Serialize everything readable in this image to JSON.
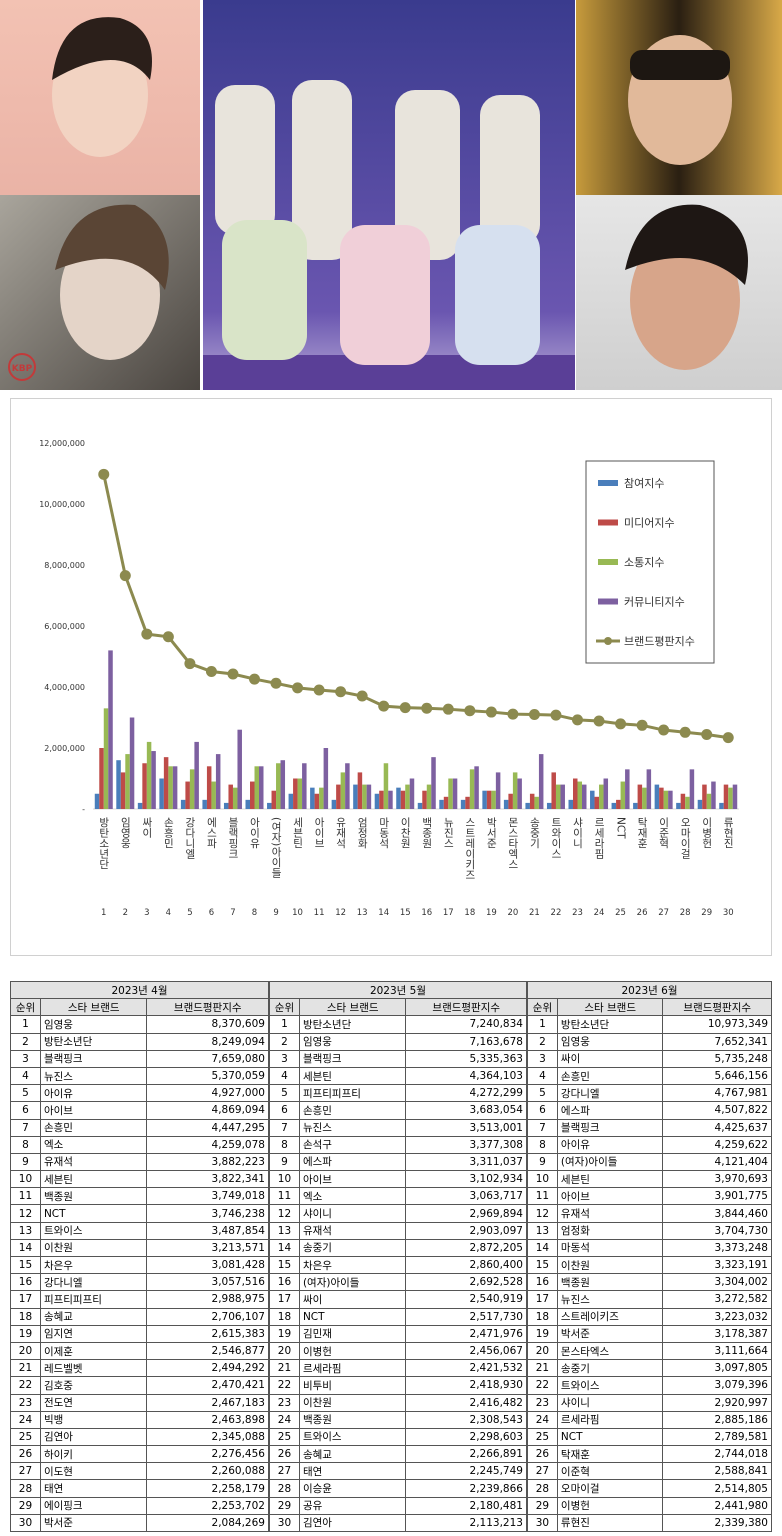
{
  "photos": {
    "logo": "KBP"
  },
  "chart_data": {
    "type": "bar",
    "categories": [
      "방탄소년단",
      "임영웅",
      "싸이",
      "손흥민",
      "강다니엘",
      "에스파",
      "블랙핑크",
      "아이유",
      "(여자)아이들",
      "세븐틴",
      "아이브",
      "유재석",
      "엄정화",
      "마동석",
      "이찬원",
      "백종원",
      "뉴진스",
      "스트레이키즈",
      "박서준",
      "몬스타엑스",
      "송중기",
      "트와이스",
      "샤이니",
      "르세라핌",
      "NCT",
      "탁재훈",
      "이준혁",
      "오마이걸",
      "이병헌",
      "류현진"
    ],
    "ranks": [
      1,
      2,
      3,
      4,
      5,
      6,
      7,
      8,
      9,
      10,
      11,
      12,
      13,
      14,
      15,
      16,
      17,
      18,
      19,
      20,
      21,
      22,
      23,
      24,
      25,
      26,
      27,
      28,
      29,
      30
    ],
    "ylim": [
      0,
      12000000
    ],
    "yticks": [
      {
        "value": 0,
        "label": "-"
      },
      {
        "value": 2000000,
        "label": "2,000,000"
      },
      {
        "value": 4000000,
        "label": "4,000,000"
      },
      {
        "value": 6000000,
        "label": "6,000,000"
      },
      {
        "value": 8000000,
        "label": "8,000,000"
      },
      {
        "value": 10000000,
        "label": "10,000,000"
      },
      {
        "value": 12000000,
        "label": "12,000,000"
      }
    ],
    "grid": false,
    "legend": "upper right",
    "series": [
      {
        "name": "참여지수",
        "color": "#4a7ebb",
        "values": [
          500000,
          1600000,
          200000,
          1000000,
          300000,
          300000,
          200000,
          300000,
          200000,
          500000,
          700000,
          300000,
          800000,
          500000,
          700000,
          200000,
          300000,
          300000,
          600000,
          300000,
          200000,
          200000,
          300000,
          600000,
          200000,
          200000,
          800000,
          200000,
          300000,
          200000
        ]
      },
      {
        "name": "미디어지수",
        "color": "#be4b48",
        "values": [
          2000000,
          1200000,
          1500000,
          1700000,
          900000,
          1400000,
          800000,
          900000,
          600000,
          1000000,
          500000,
          800000,
          1200000,
          600000,
          600000,
          600000,
          400000,
          400000,
          600000,
          500000,
          500000,
          1200000,
          1000000,
          400000,
          300000,
          800000,
          700000,
          500000,
          800000,
          800000
        ]
      },
      {
        "name": "소통지수",
        "color": "#98b954",
        "values": [
          3300000,
          1800000,
          2200000,
          1400000,
          1300000,
          900000,
          700000,
          1400000,
          1500000,
          1000000,
          700000,
          1200000,
          800000,
          1500000,
          800000,
          800000,
          1000000,
          1300000,
          600000,
          1200000,
          400000,
          800000,
          900000,
          800000,
          900000,
          700000,
          600000,
          400000,
          500000,
          700000
        ]
      },
      {
        "name": "커뮤니티지수",
        "color": "#7d60a0",
        "values": [
          5200000,
          3000000,
          1900000,
          1400000,
          2200000,
          1800000,
          2600000,
          1400000,
          1600000,
          1500000,
          2000000,
          1500000,
          800000,
          600000,
          1000000,
          1700000,
          1000000,
          1400000,
          1200000,
          1000000,
          1800000,
          800000,
          800000,
          1000000,
          1300000,
          1300000,
          600000,
          1300000,
          900000,
          800000
        ]
      },
      {
        "name": "브랜드평판지수",
        "type": "line",
        "color": "#8c8a4f",
        "values": [
          10973349,
          7652341,
          5735248,
          5646156,
          4767981,
          4507822,
          4425637,
          4259622,
          4121404,
          3970693,
          3901775,
          3844460,
          3704730,
          3373248,
          3323191,
          3304002,
          3272582,
          3223032,
          3178387,
          3111664,
          3097805,
          3079396,
          2920997,
          2885186,
          2789581,
          2744018,
          2588841,
          2514805,
          2441980,
          2339380
        ]
      }
    ]
  },
  "tables": [
    {
      "month": "2023년 4월",
      "columns": [
        "순위",
        "스타 브랜드",
        "브랜드평판지수"
      ],
      "rows": [
        [
          1,
          "임영웅",
          "8,370,609"
        ],
        [
          2,
          "방탄소년단",
          "8,249,094"
        ],
        [
          3,
          "블랙핑크",
          "7,659,080"
        ],
        [
          4,
          "뉴진스",
          "5,370,059"
        ],
        [
          5,
          "아이유",
          "4,927,000"
        ],
        [
          6,
          "아이브",
          "4,869,094"
        ],
        [
          7,
          "손흥민",
          "4,447,295"
        ],
        [
          8,
          "엑소",
          "4,259,078"
        ],
        [
          9,
          "유재석",
          "3,882,223"
        ],
        [
          10,
          "세븐틴",
          "3,822,341"
        ],
        [
          11,
          "백종원",
          "3,749,018"
        ],
        [
          12,
          "NCT",
          "3,746,238"
        ],
        [
          13,
          "트와이스",
          "3,487,854"
        ],
        [
          14,
          "이찬원",
          "3,213,571"
        ],
        [
          15,
          "차은우",
          "3,081,428"
        ],
        [
          16,
          "강다니엘",
          "3,057,516"
        ],
        [
          17,
          "피프티피프티",
          "2,988,975"
        ],
        [
          18,
          "송혜교",
          "2,706,107"
        ],
        [
          19,
          "임지연",
          "2,615,383"
        ],
        [
          20,
          "이제훈",
          "2,546,877"
        ],
        [
          21,
          "레드벨벳",
          "2,494,292"
        ],
        [
          22,
          "김호중",
          "2,470,421"
        ],
        [
          23,
          "전도연",
          "2,467,183"
        ],
        [
          24,
          "빅뱅",
          "2,463,898"
        ],
        [
          25,
          "김연아",
          "2,345,088"
        ],
        [
          26,
          "하이키",
          "2,276,456"
        ],
        [
          27,
          "이도현",
          "2,260,088"
        ],
        [
          28,
          "태연",
          "2,258,179"
        ],
        [
          29,
          "에이핑크",
          "2,253,702"
        ],
        [
          30,
          "박서준",
          "2,084,269"
        ]
      ]
    },
    {
      "month": "2023년 5월",
      "columns": [
        "순위",
        "스타 브랜드",
        "브랜드평판지수"
      ],
      "rows": [
        [
          1,
          "방탄소년단",
          "7,240,834"
        ],
        [
          2,
          "임영웅",
          "7,163,678"
        ],
        [
          3,
          "블랙핑크",
          "5,335,363"
        ],
        [
          4,
          "세븐틴",
          "4,364,103"
        ],
        [
          5,
          "피프티피프티",
          "4,272,299"
        ],
        [
          6,
          "손흥민",
          "3,683,054"
        ],
        [
          7,
          "뉴진스",
          "3,513,001"
        ],
        [
          8,
          "손석구",
          "3,377,308"
        ],
        [
          9,
          "에스파",
          "3,311,037"
        ],
        [
          10,
          "아이브",
          "3,102,934"
        ],
        [
          11,
          "엑소",
          "3,063,717"
        ],
        [
          12,
          "샤이니",
          "2,969,894"
        ],
        [
          13,
          "유재석",
          "2,903,097"
        ],
        [
          14,
          "송중기",
          "2,872,205"
        ],
        [
          15,
          "차은우",
          "2,860,400"
        ],
        [
          16,
          "(여자)아이들",
          "2,692,528"
        ],
        [
          17,
          "싸이",
          "2,540,919"
        ],
        [
          18,
          "NCT",
          "2,517,730"
        ],
        [
          19,
          "김민재",
          "2,471,976"
        ],
        [
          20,
          "이병헌",
          "2,456,067"
        ],
        [
          21,
          "르세라핌",
          "2,421,532"
        ],
        [
          22,
          "비투비",
          "2,418,930"
        ],
        [
          23,
          "이찬원",
          "2,416,482"
        ],
        [
          24,
          "백종원",
          "2,308,543"
        ],
        [
          25,
          "트와이스",
          "2,298,603"
        ],
        [
          26,
          "송혜교",
          "2,266,891"
        ],
        [
          27,
          "태연",
          "2,245,749"
        ],
        [
          28,
          "이승윤",
          "2,239,866"
        ],
        [
          29,
          "공유",
          "2,180,481"
        ],
        [
          30,
          "김연아",
          "2,113,213"
        ]
      ]
    },
    {
      "month": "2023년 6월",
      "columns": [
        "순위",
        "스타 브랜드",
        "브랜드평판지수"
      ],
      "rows": [
        [
          1,
          "방탄소년단",
          "10,973,349"
        ],
        [
          2,
          "임영웅",
          "7,652,341"
        ],
        [
          3,
          "싸이",
          "5,735,248"
        ],
        [
          4,
          "손흥민",
          "5,646,156"
        ],
        [
          5,
          "강다니엘",
          "4,767,981"
        ],
        [
          6,
          "에스파",
          "4,507,822"
        ],
        [
          7,
          "블랙핑크",
          "4,425,637"
        ],
        [
          8,
          "아이유",
          "4,259,622"
        ],
        [
          9,
          "(여자)아이들",
          "4,121,404"
        ],
        [
          10,
          "세븐틴",
          "3,970,693"
        ],
        [
          11,
          "아이브",
          "3,901,775"
        ],
        [
          12,
          "유재석",
          "3,844,460"
        ],
        [
          13,
          "엄정화",
          "3,704,730"
        ],
        [
          14,
          "마동석",
          "3,373,248"
        ],
        [
          15,
          "이찬원",
          "3,323,191"
        ],
        [
          16,
          "백종원",
          "3,304,002"
        ],
        [
          17,
          "뉴진스",
          "3,272,582"
        ],
        [
          18,
          "스트레이키즈",
          "3,223,032"
        ],
        [
          19,
          "박서준",
          "3,178,387"
        ],
        [
          20,
          "몬스타엑스",
          "3,111,664"
        ],
        [
          21,
          "송중기",
          "3,097,805"
        ],
        [
          22,
          "트와이스",
          "3,079,396"
        ],
        [
          23,
          "샤이니",
          "2,920,997"
        ],
        [
          24,
          "르세라핌",
          "2,885,186"
        ],
        [
          25,
          "NCT",
          "2,789,581"
        ],
        [
          26,
          "탁재훈",
          "2,744,018"
        ],
        [
          27,
          "이준혁",
          "2,588,841"
        ],
        [
          28,
          "오마이걸",
          "2,514,805"
        ],
        [
          29,
          "이병헌",
          "2,441,980"
        ],
        [
          30,
          "류현진",
          "2,339,380"
        ]
      ]
    }
  ]
}
